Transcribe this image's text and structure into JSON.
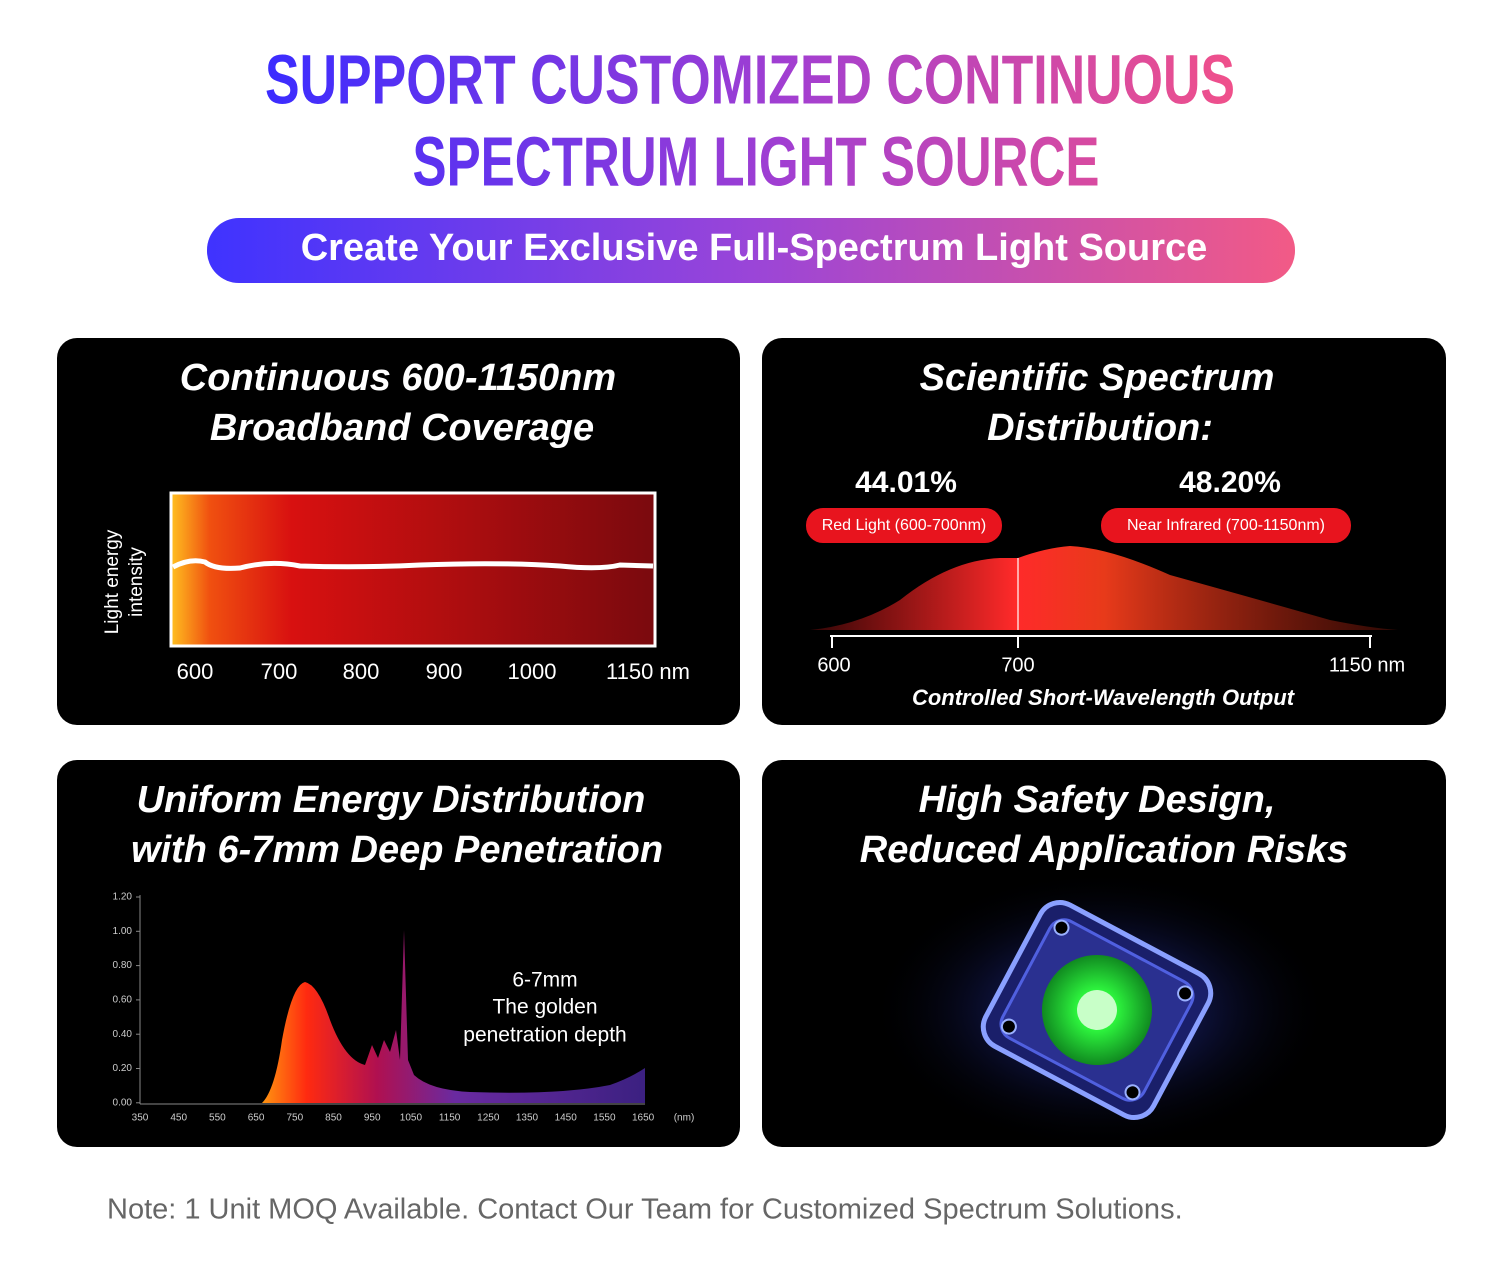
{
  "header": {
    "title_lines": [
      "SUPPORT CUSTOMIZED CONTINUOUS",
      "SPECTRUM LIGHT SOURCE"
    ],
    "banner": "Create Your Exclusive Full-Spectrum Light Source"
  },
  "panels": [
    {
      "title_lines": [
        "Continuous 600-1150nm",
        "Broadband Coverage"
      ],
      "y_label_lines": [
        "Light energy",
        "intensity"
      ],
      "x_ticks": [
        "600",
        "700",
        "800",
        "900",
        "1000",
        "1150 nm"
      ]
    },
    {
      "title_lines": [
        "Scientific Spectrum",
        "Distribution:"
      ],
      "stats": [
        {
          "value": "44.01%",
          "label": "Red Light (600-700nm)"
        },
        {
          "value": "48.20%",
          "label": "Near Infrared (700-1150nm)"
        }
      ],
      "x_ticks": [
        "600",
        "700",
        "1150 nm"
      ],
      "caption": "Controlled Short-Wavelength Output"
    },
    {
      "title_lines": [
        "Uniform Energy Distribution",
        "with 6-7mm Deep Penetration"
      ],
      "y_ticks": [
        "1.20",
        "1.00",
        "0.80",
        "0.60",
        "0.40",
        "0.20",
        "0.00"
      ],
      "x_ticks": [
        "350",
        "450",
        "550",
        "650",
        "750",
        "850",
        "950",
        "1050",
        "1150",
        "1250",
        "1350",
        "1450",
        "1550",
        "1650",
        "(nm)"
      ],
      "annotation_lines": [
        "6-7mm",
        "The golden",
        "penetration depth"
      ]
    },
    {
      "title_lines": [
        "High Safety Design,",
        "Reduced Application Risks"
      ]
    }
  ],
  "note": "Note: 1 Unit MOQ Available. Contact Our Team for Customized Spectrum Solutions."
}
